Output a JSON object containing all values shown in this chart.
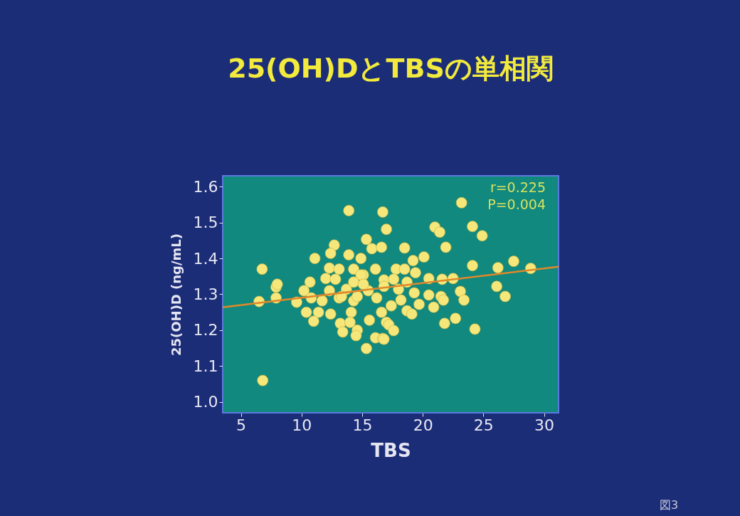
{
  "chart_data": {
    "type": "scatter",
    "title": "25(OH)DとTBSの単相関",
    "xlabel": "TBS",
    "ylabel": "25(OH)D (ng/mL)",
    "xlim": [
      3.5,
      31.2
    ],
    "ylim": [
      0.97,
      1.63
    ],
    "xticks": [
      5,
      10,
      15,
      20,
      25,
      30
    ],
    "yticks": [
      {
        "value": 1,
        "label": "1.0"
      },
      1.1,
      1.2,
      1.3,
      1.4,
      1.5,
      1.6
    ],
    "grid": false,
    "annotations": [
      "r=0.225",
      "P=0.004",
      "図3"
    ],
    "series": [
      {
        "marker": "circle",
        "color": "#f5e77a",
        "x": [
          6.5,
          6.75,
          6.8,
          7.9,
          7.9,
          13.9,
          16.7,
          17.0,
          15.35,
          15.8,
          16.6,
          12.7,
          12.4,
          13.9,
          11.1,
          14.9,
          12.3,
          13.1,
          14.3,
          16.1,
          12.0,
          12.8,
          15.1,
          16.8,
          10.7,
          8.0,
          10.2,
          12.3,
          13.7,
          15.5,
          9.6,
          10.8,
          11.7,
          13.1,
          14.3,
          16.2,
          10.4,
          11.4,
          12.4,
          14.1,
          11.0,
          15.6,
          16.6,
          17.0,
          13.2,
          14.0,
          13.4,
          14.6,
          14.5,
          16.1,
          16.7,
          15.35,
          14.9,
          14.3,
          13.3,
          14.6,
          15.1,
          23.2,
          21.0,
          21.4,
          24.1,
          24.9,
          21.9,
          18.5,
          20.1,
          19.2,
          24.1,
          26.2,
          27.5,
          28.9,
          17.8,
          18.5,
          19.4,
          20.5,
          21.6,
          22.5,
          17.6,
          18.7,
          16.8,
          18.0,
          19.3,
          20.5,
          21.5,
          23.1,
          23.4,
          26.1,
          26.8,
          18.2,
          19.7,
          20.9,
          21.7,
          17.4,
          18.7,
          19.1,
          17.2,
          17.6,
          21.8,
          22.7,
          24.3,
          16.8
        ],
        "values": [
          1.28,
          1.37,
          1.06,
          1.32,
          1.29,
          1.533,
          1.529,
          1.481,
          1.453,
          1.427,
          1.431,
          1.437,
          1.414,
          1.41,
          1.4,
          1.4,
          1.373,
          1.37,
          1.37,
          1.37,
          1.344,
          1.342,
          1.354,
          1.34,
          1.334,
          1.328,
          1.31,
          1.31,
          1.314,
          1.31,
          1.278,
          1.29,
          1.282,
          1.29,
          1.282,
          1.29,
          1.25,
          1.25,
          1.245,
          1.25,
          1.225,
          1.228,
          1.25,
          1.222,
          1.219,
          1.222,
          1.195,
          1.2,
          1.185,
          1.179,
          1.177,
          1.149,
          1.354,
          1.334,
          1.294,
          1.294,
          1.328,
          1.555,
          1.487,
          1.473,
          1.489,
          1.463,
          1.431,
          1.429,
          1.404,
          1.394,
          1.38,
          1.374,
          1.392,
          1.372,
          1.37,
          1.37,
          1.36,
          1.344,
          1.342,
          1.344,
          1.342,
          1.334,
          1.322,
          1.314,
          1.304,
          1.298,
          1.294,
          1.308,
          1.284,
          1.322,
          1.294,
          1.284,
          1.272,
          1.264,
          1.284,
          1.268,
          1.254,
          1.245,
          1.215,
          1.199,
          1.219,
          1.233,
          1.203,
          1.175
        ]
      },
      {
        "type": "line",
        "color": "#e0882a",
        "x": [
          3.5,
          31.2
        ],
        "values": [
          1.264,
          1.377
        ]
      }
    ]
  }
}
